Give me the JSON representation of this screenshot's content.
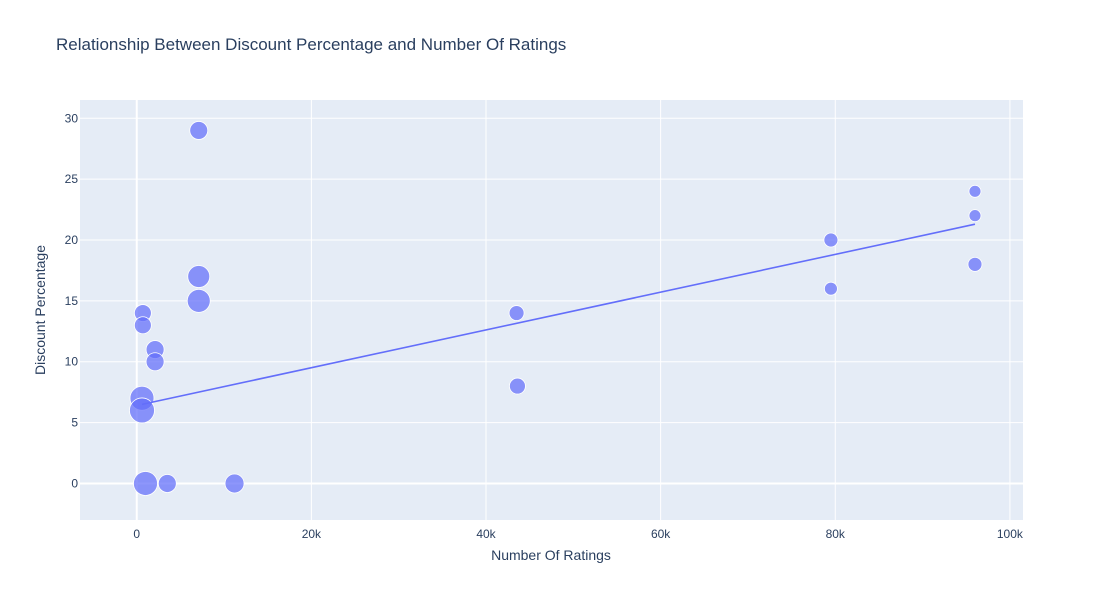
{
  "chart_data": {
    "type": "scatter",
    "title": "Relationship Between Discount Percentage and Number Of Ratings",
    "xlabel": "Number Of Ratings",
    "ylabel": "Discount Percentage",
    "xlim": [
      -6500,
      101500
    ],
    "ylim": [
      -3,
      31.5
    ],
    "xticks": [
      0,
      20000,
      40000,
      60000,
      80000,
      100000
    ],
    "xtick_labels": [
      "0",
      "20k",
      "40k",
      "60k",
      "80k",
      "100k"
    ],
    "yticks": [
      0,
      5,
      10,
      15,
      20,
      25,
      30
    ],
    "ytick_labels": [
      "0",
      "5",
      "10",
      "15",
      "20",
      "25",
      "30"
    ],
    "grid": true,
    "plot_background": "#e5ecf6",
    "marker_color": "#636efa",
    "points": [
      {
        "x": 7100,
        "y": 29,
        "size": 18
      },
      {
        "x": 7100,
        "y": 17,
        "size": 22
      },
      {
        "x": 7100,
        "y": 15,
        "size": 23
      },
      {
        "x": 700,
        "y": 14,
        "size": 17
      },
      {
        "x": 700,
        "y": 13,
        "size": 17
      },
      {
        "x": 2100,
        "y": 11,
        "size": 18
      },
      {
        "x": 2100,
        "y": 10,
        "size": 18
      },
      {
        "x": 600,
        "y": 7,
        "size": 24
      },
      {
        "x": 600,
        "y": 6,
        "size": 25
      },
      {
        "x": 1000,
        "y": 0,
        "size": 24
      },
      {
        "x": 3500,
        "y": 0,
        "size": 18
      },
      {
        "x": 11200,
        "y": 0,
        "size": 19
      },
      {
        "x": 43500,
        "y": 14,
        "size": 15
      },
      {
        "x": 43600,
        "y": 8,
        "size": 16
      },
      {
        "x": 79500,
        "y": 20,
        "size": 14
      },
      {
        "x": 79500,
        "y": 16,
        "size": 13
      },
      {
        "x": 96000,
        "y": 24,
        "size": 12
      },
      {
        "x": 96000,
        "y": 22,
        "size": 12
      },
      {
        "x": 96000,
        "y": 18,
        "size": 14
      }
    ],
    "trendline": {
      "x": [
        600,
        96000
      ],
      "y": [
        6.5,
        21.3
      ]
    }
  }
}
